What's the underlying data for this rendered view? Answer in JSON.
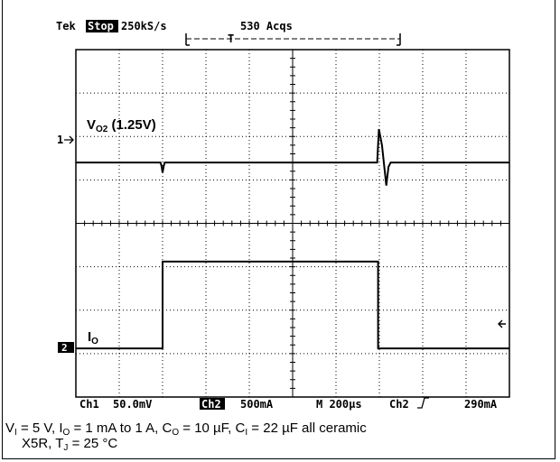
{
  "header": {
    "brand": "Tek",
    "state": "Stop",
    "rate": "250kS/s",
    "acqs": "530 Acqs",
    "trigger_marker": "T"
  },
  "chart_data": {
    "type": "line",
    "grid": true,
    "x_divisions": 10,
    "y_divisions": 8,
    "time_per_div_us": 200,
    "channels": [
      {
        "name": "Ch1",
        "scale_label": "50.0mV",
        "color": "#000000",
        "label": "V",
        "label_sub": "O2",
        "label_suffix": " (1.25V)",
        "marker": "1",
        "baseline_div": 5.4,
        "x_div": [
          0,
          1.95,
          1.97,
          2.0,
          2.03,
          2.05,
          6.95,
          6.99,
          7.06,
          7.16,
          7.21,
          7.26,
          10
        ],
        "y_div": [
          5.4,
          5.4,
          5.34,
          5.17,
          5.33,
          5.4,
          5.4,
          6.17,
          5.8,
          4.87,
          5.3,
          5.4,
          5.4
        ]
      },
      {
        "name": "Ch2",
        "scale_label": "500mA",
        "color": "#000000",
        "label": "I",
        "label_sub": "O",
        "marker": "2",
        "baseline_div": 1.12,
        "x_div": [
          0,
          2.0,
          2.0,
          6.97,
          6.97,
          10
        ],
        "y_div": [
          1.12,
          1.12,
          3.12,
          3.12,
          1.12,
          1.12
        ]
      }
    ],
    "readout": {
      "ch1": "Ch1",
      "ch1_scale": "50.0mV",
      "ch2": "Ch2",
      "ch2_scale": "500mA",
      "timebase": "M 200µs",
      "trigger_source": "Ch2",
      "trigger_level": "290mA"
    }
  },
  "caption": {
    "line1_parts": [
      "V",
      "I",
      " = 5 V, I",
      "O",
      " = 1 mA to 1 A, C",
      "O",
      " = 10 µF, C",
      "I",
      " = 22 µF all ceramic"
    ],
    "line2_parts": [
      "X5R, T",
      "J",
      " = 25 °C"
    ]
  }
}
